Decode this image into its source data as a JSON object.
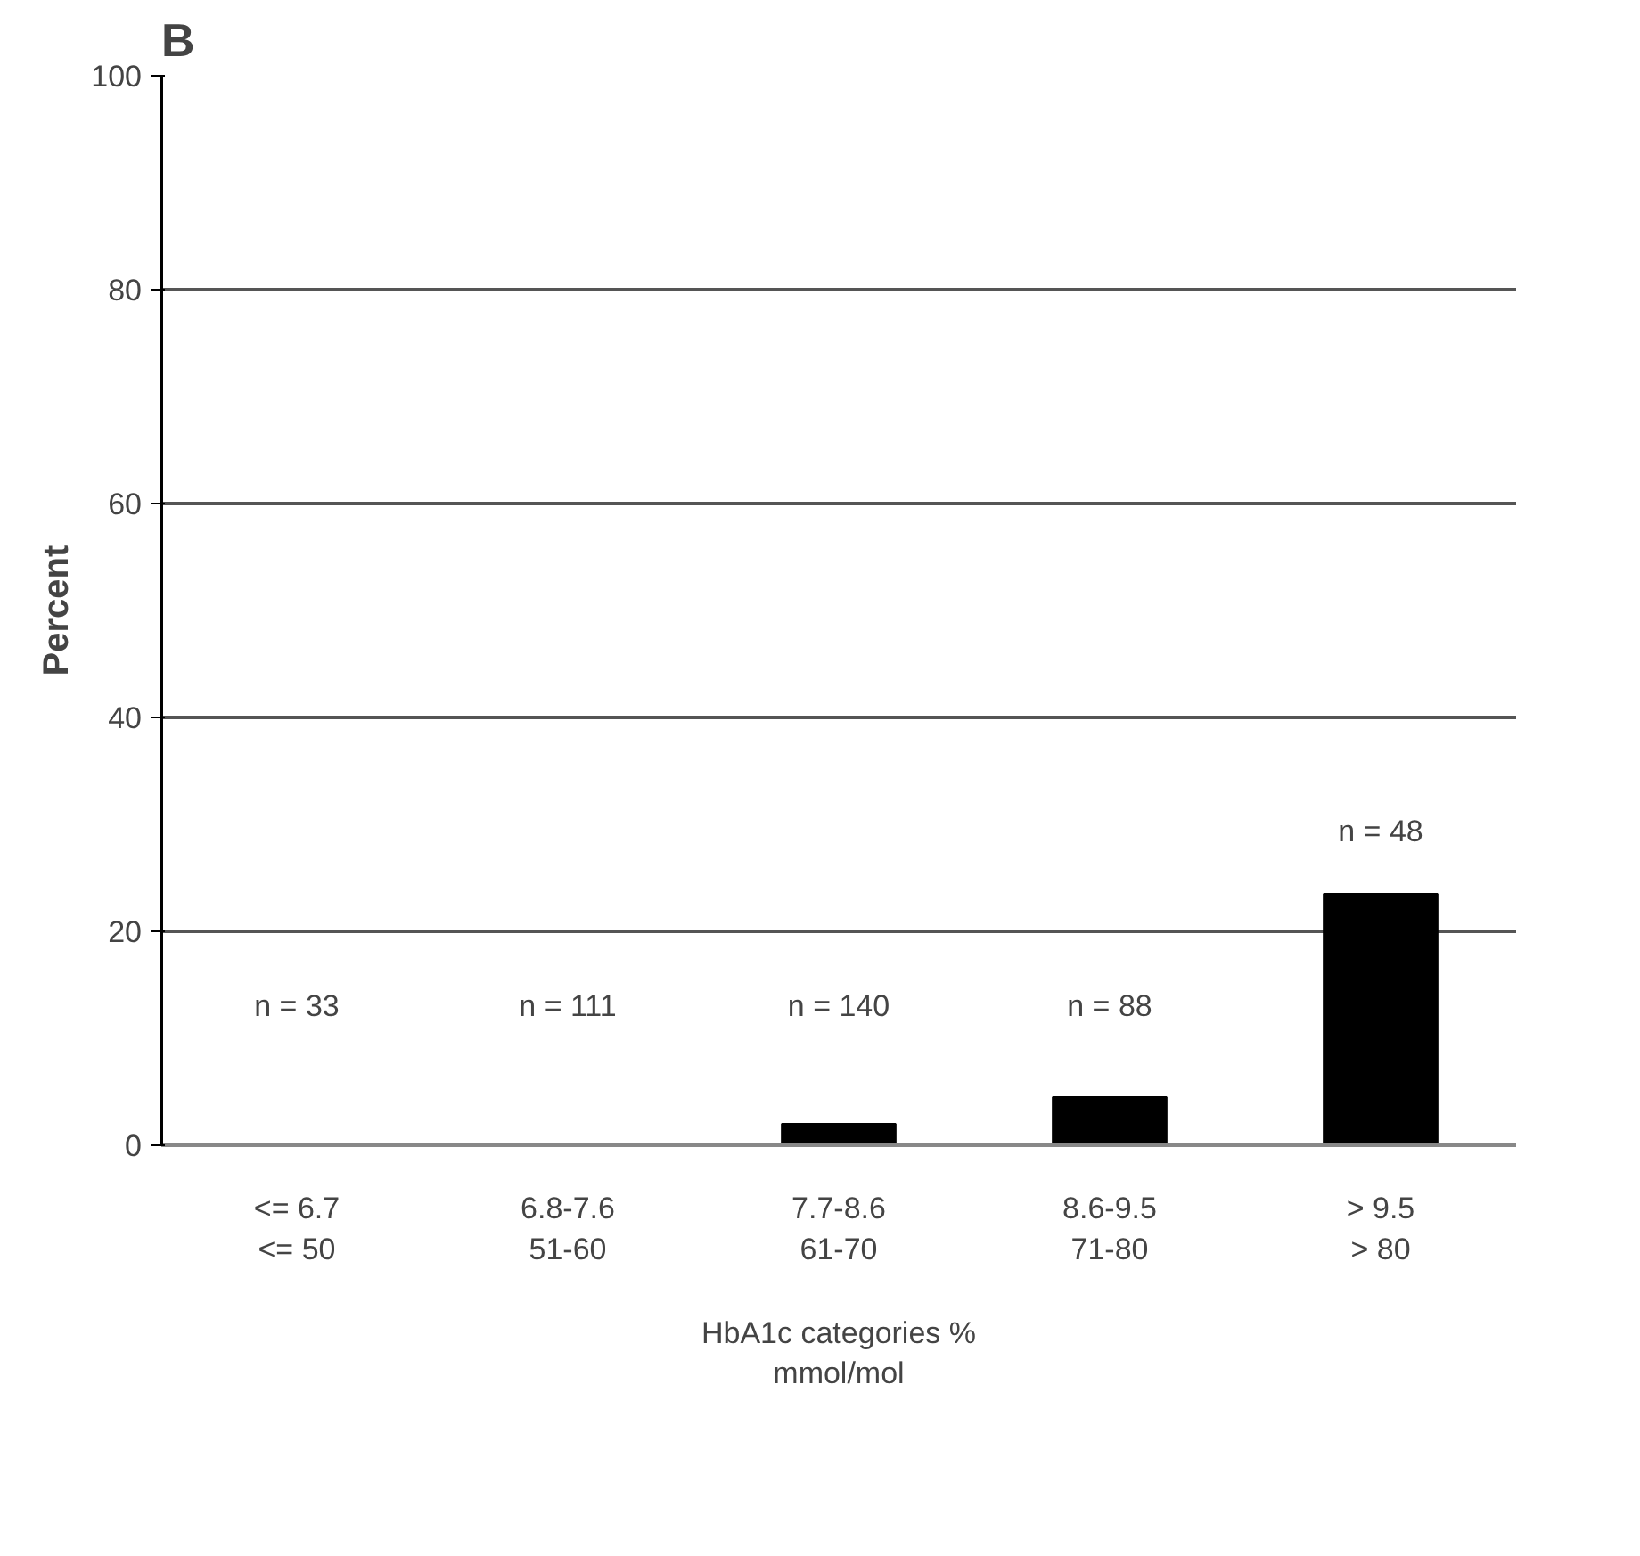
{
  "chart_data": {
    "type": "bar",
    "title": "B",
    "ylabel": "Percent",
    "xlabel": "HbA1c categories %\nmmol/mol",
    "categories": [
      "<= 6.7\n<= 50",
      "6.8-7.6\n51-60",
      "7.7-8.6\n61-70",
      "8.6-9.5\n71-80",
      "> 9.5\n> 80"
    ],
    "values": [
      0,
      0,
      2,
      4.5,
      23.5
    ],
    "color": "#000000",
    "ylim": [
      0,
      100
    ],
    "yticks": [
      0,
      20,
      40,
      60,
      80,
      100
    ],
    "grid": "y",
    "annotations": [
      "n = 33",
      "n = 111",
      "n = 140",
      "n = 88",
      "n = 48"
    ]
  }
}
